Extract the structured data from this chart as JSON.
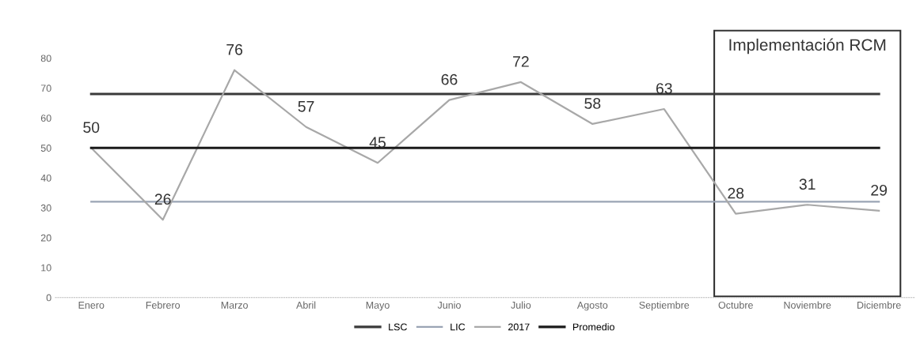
{
  "chart_data": {
    "type": "line",
    "categories": [
      "Enero",
      "Febrero",
      "Marzo",
      "Abril",
      "Mayo",
      "Junio",
      "Julio",
      "Agosto",
      "Septiembre",
      "Octubre",
      "Noviembre",
      "Diciembre"
    ],
    "series": [
      {
        "name": "LSC",
        "color": "#3a3a3a",
        "values": [
          68,
          68,
          68,
          68,
          68,
          68,
          68,
          68,
          68,
          68,
          68,
          68
        ]
      },
      {
        "name": "LIC",
        "color": "#9aa4b4",
        "values": [
          32,
          32,
          32,
          32,
          32,
          32,
          32,
          32,
          32,
          32,
          32,
          32
        ]
      },
      {
        "name": "2017",
        "color": "#a8a8a8",
        "values": [
          50,
          26,
          76,
          57,
          45,
          66,
          72,
          58,
          63,
          28,
          31,
          29
        ],
        "value_labels": [
          "50",
          "26",
          "76",
          "57",
          "45",
          "66",
          "72",
          "58",
          "63",
          "28",
          "31",
          "29"
        ]
      },
      {
        "name": "Promedio",
        "color": "#1a1a1a",
        "values": [
          50,
          50,
          50,
          50,
          50,
          50,
          50,
          50,
          50,
          50,
          50,
          50
        ]
      }
    ],
    "annotations": [
      "Implementación RCM"
    ],
    "ylim": [
      0,
      80
    ],
    "yticks": [
      0,
      10,
      20,
      30,
      40,
      50,
      60,
      70,
      80
    ],
    "grid": false,
    "legend": "bottom",
    "marker": "none",
    "line_style": "solid"
  }
}
